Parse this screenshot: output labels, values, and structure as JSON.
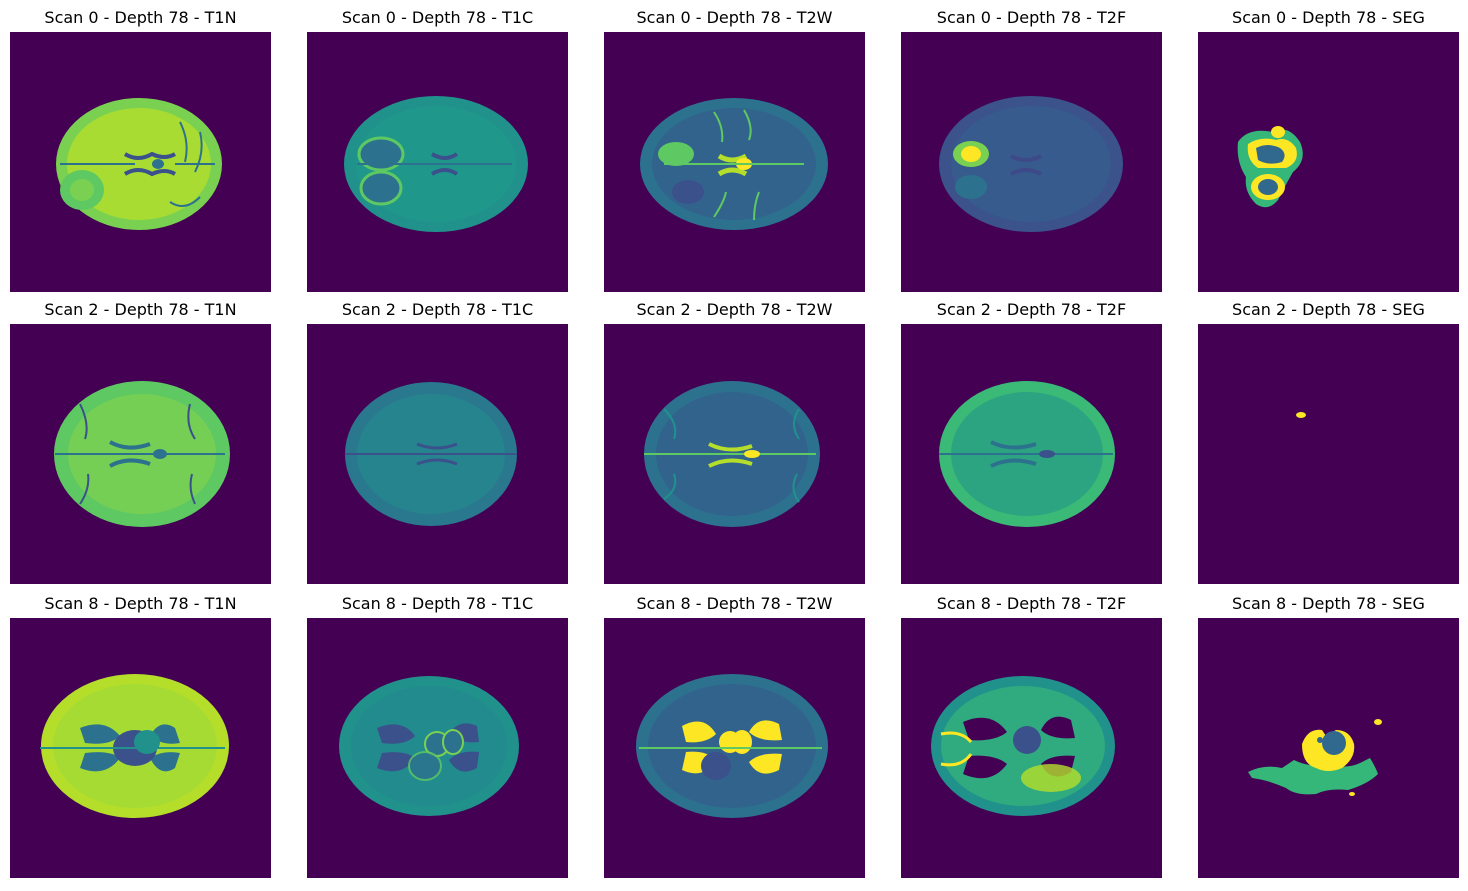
{
  "colors": {
    "background": "#440154",
    "low": "#3b518b",
    "mid": "#21918c",
    "mid_high": "#5ec962",
    "high": "#fde725",
    "seg_green": "#35b779",
    "seg_blue": "#31688e",
    "seg_yellow": "#fde725"
  },
  "rows": [
    {
      "scan": 0,
      "panels": [
        {
          "title": "Scan 0 - Depth 78 - T1N",
          "modality": "T1N"
        },
        {
          "title": "Scan 0 - Depth 78 - T1C",
          "modality": "T1C"
        },
        {
          "title": "Scan 0 - Depth 78 - T2W",
          "modality": "T2W"
        },
        {
          "title": "Scan 0 - Depth 78 - T2F",
          "modality": "T2F"
        },
        {
          "title": "Scan 0 - Depth 78 - SEG",
          "modality": "SEG"
        }
      ]
    },
    {
      "scan": 2,
      "panels": [
        {
          "title": "Scan 2 - Depth 78 - T1N",
          "modality": "T1N"
        },
        {
          "title": "Scan 2 - Depth 78 - T1C",
          "modality": "T1C"
        },
        {
          "title": "Scan 2 - Depth 78 - T2W",
          "modality": "T2W"
        },
        {
          "title": "Scan 2 - Depth 78 - T2F",
          "modality": "T2F"
        },
        {
          "title": "Scan 2 - Depth 78 - SEG",
          "modality": "SEG"
        }
      ]
    },
    {
      "scan": 8,
      "panels": [
        {
          "title": "Scan 8 - Depth 78 - T1N",
          "modality": "T1N"
        },
        {
          "title": "Scan 8 - Depth 78 - T1C",
          "modality": "T1C"
        },
        {
          "title": "Scan 8 - Depth 78 - T2W",
          "modality": "T2W"
        },
        {
          "title": "Scan 8 - Depth 78 - T2F",
          "modality": "T2F"
        },
        {
          "title": "Scan 8 - Depth 78 - SEG",
          "modality": "SEG"
        }
      ]
    }
  ]
}
